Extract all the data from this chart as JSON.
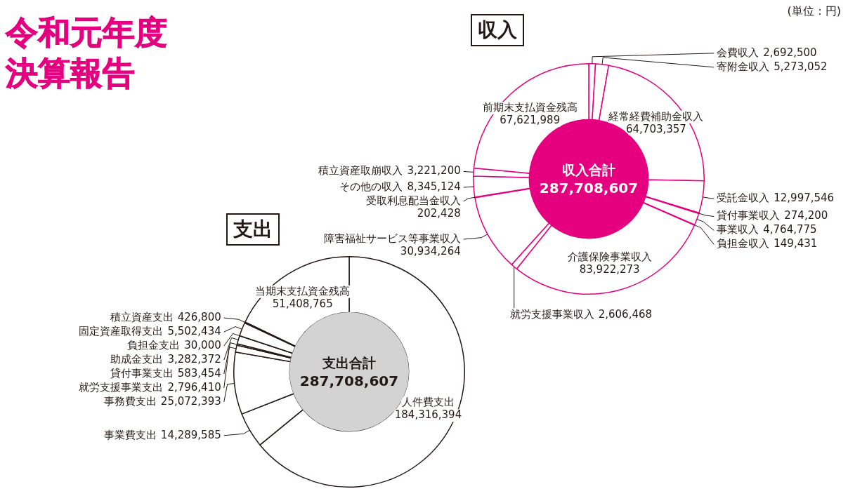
{
  "chart_data": [
    {
      "type": "other",
      "title": "令和元年度決算報告",
      "annotations": [
        "(単位：円)"
      ]
    },
    {
      "type": "donut",
      "title": "収入",
      "categories": [
        "会費収入",
        "寄附金収入",
        "経常経費補助金収入",
        "受託金収入",
        "貸付事業収入",
        "事業収入",
        "負担金収入",
        "介護保険事業収入",
        "就労支援事業収入",
        "障害福祉サービス等事業収入",
        "受取利息配当金収入",
        "その他の収入",
        "積立資産取崩収入",
        "前期末支払資金残高"
      ],
      "values": [
        2692500,
        5273052,
        64703357,
        12997546,
        274200,
        4764775,
        149431,
        83922273,
        2606468,
        30934264,
        202428,
        8345124,
        3221200,
        67621989
      ],
      "value_labels": [
        "2,692,500",
        "5,273,052",
        "64,703,357",
        "12,997,546",
        "274,200",
        "4,764,775",
        "149,431",
        "83,922,273",
        "2,606,468",
        "30,934,264",
        "202,428",
        "8,345,124",
        "3,221,200",
        "67,621,989"
      ],
      "colors": [
        "#ffffff",
        "#ffffff",
        "#ffffff",
        "#ffffff",
        "#ffffff",
        "#ffffff",
        "#ffffff",
        "#ffffff",
        "#ffffff",
        "#ffffff",
        "#ffffff",
        "#ffffff",
        "#ffffff",
        "#ffffff"
      ],
      "annotations": [
        "収入合計",
        "287,708,607"
      ]
    },
    {
      "type": "donut",
      "title": "支出",
      "categories": [
        "人件費支出",
        "事業費支出",
        "事務費支出",
        "就労支援事業支出",
        "貸付事業支出",
        "助成金支出",
        "負担金支出",
        "固定資産取得支出",
        "積立資産支出",
        "当期末支払資金残高"
      ],
      "values": [
        184316394,
        14289585,
        25072393,
        2796410,
        583454,
        3282372,
        30000,
        5502434,
        426800,
        51408765
      ],
      "value_labels": [
        "184,316,394",
        "14,289,585",
        "25,072,393",
        "2,796,410",
        "583,454",
        "3,282,372",
        "30,000",
        "5,502,434",
        "426,800",
        "51,408,765"
      ],
      "colors": [
        "#ffffff",
        "#ffffff",
        "#ffffff",
        "#ffffff",
        "#ffffff",
        "#ffffff",
        "#ffffff",
        "#ffffff",
        "#ffffff",
        "#ffffff"
      ],
      "annotations": [
        "支出合計",
        "287,708,607"
      ]
    }
  ]
}
